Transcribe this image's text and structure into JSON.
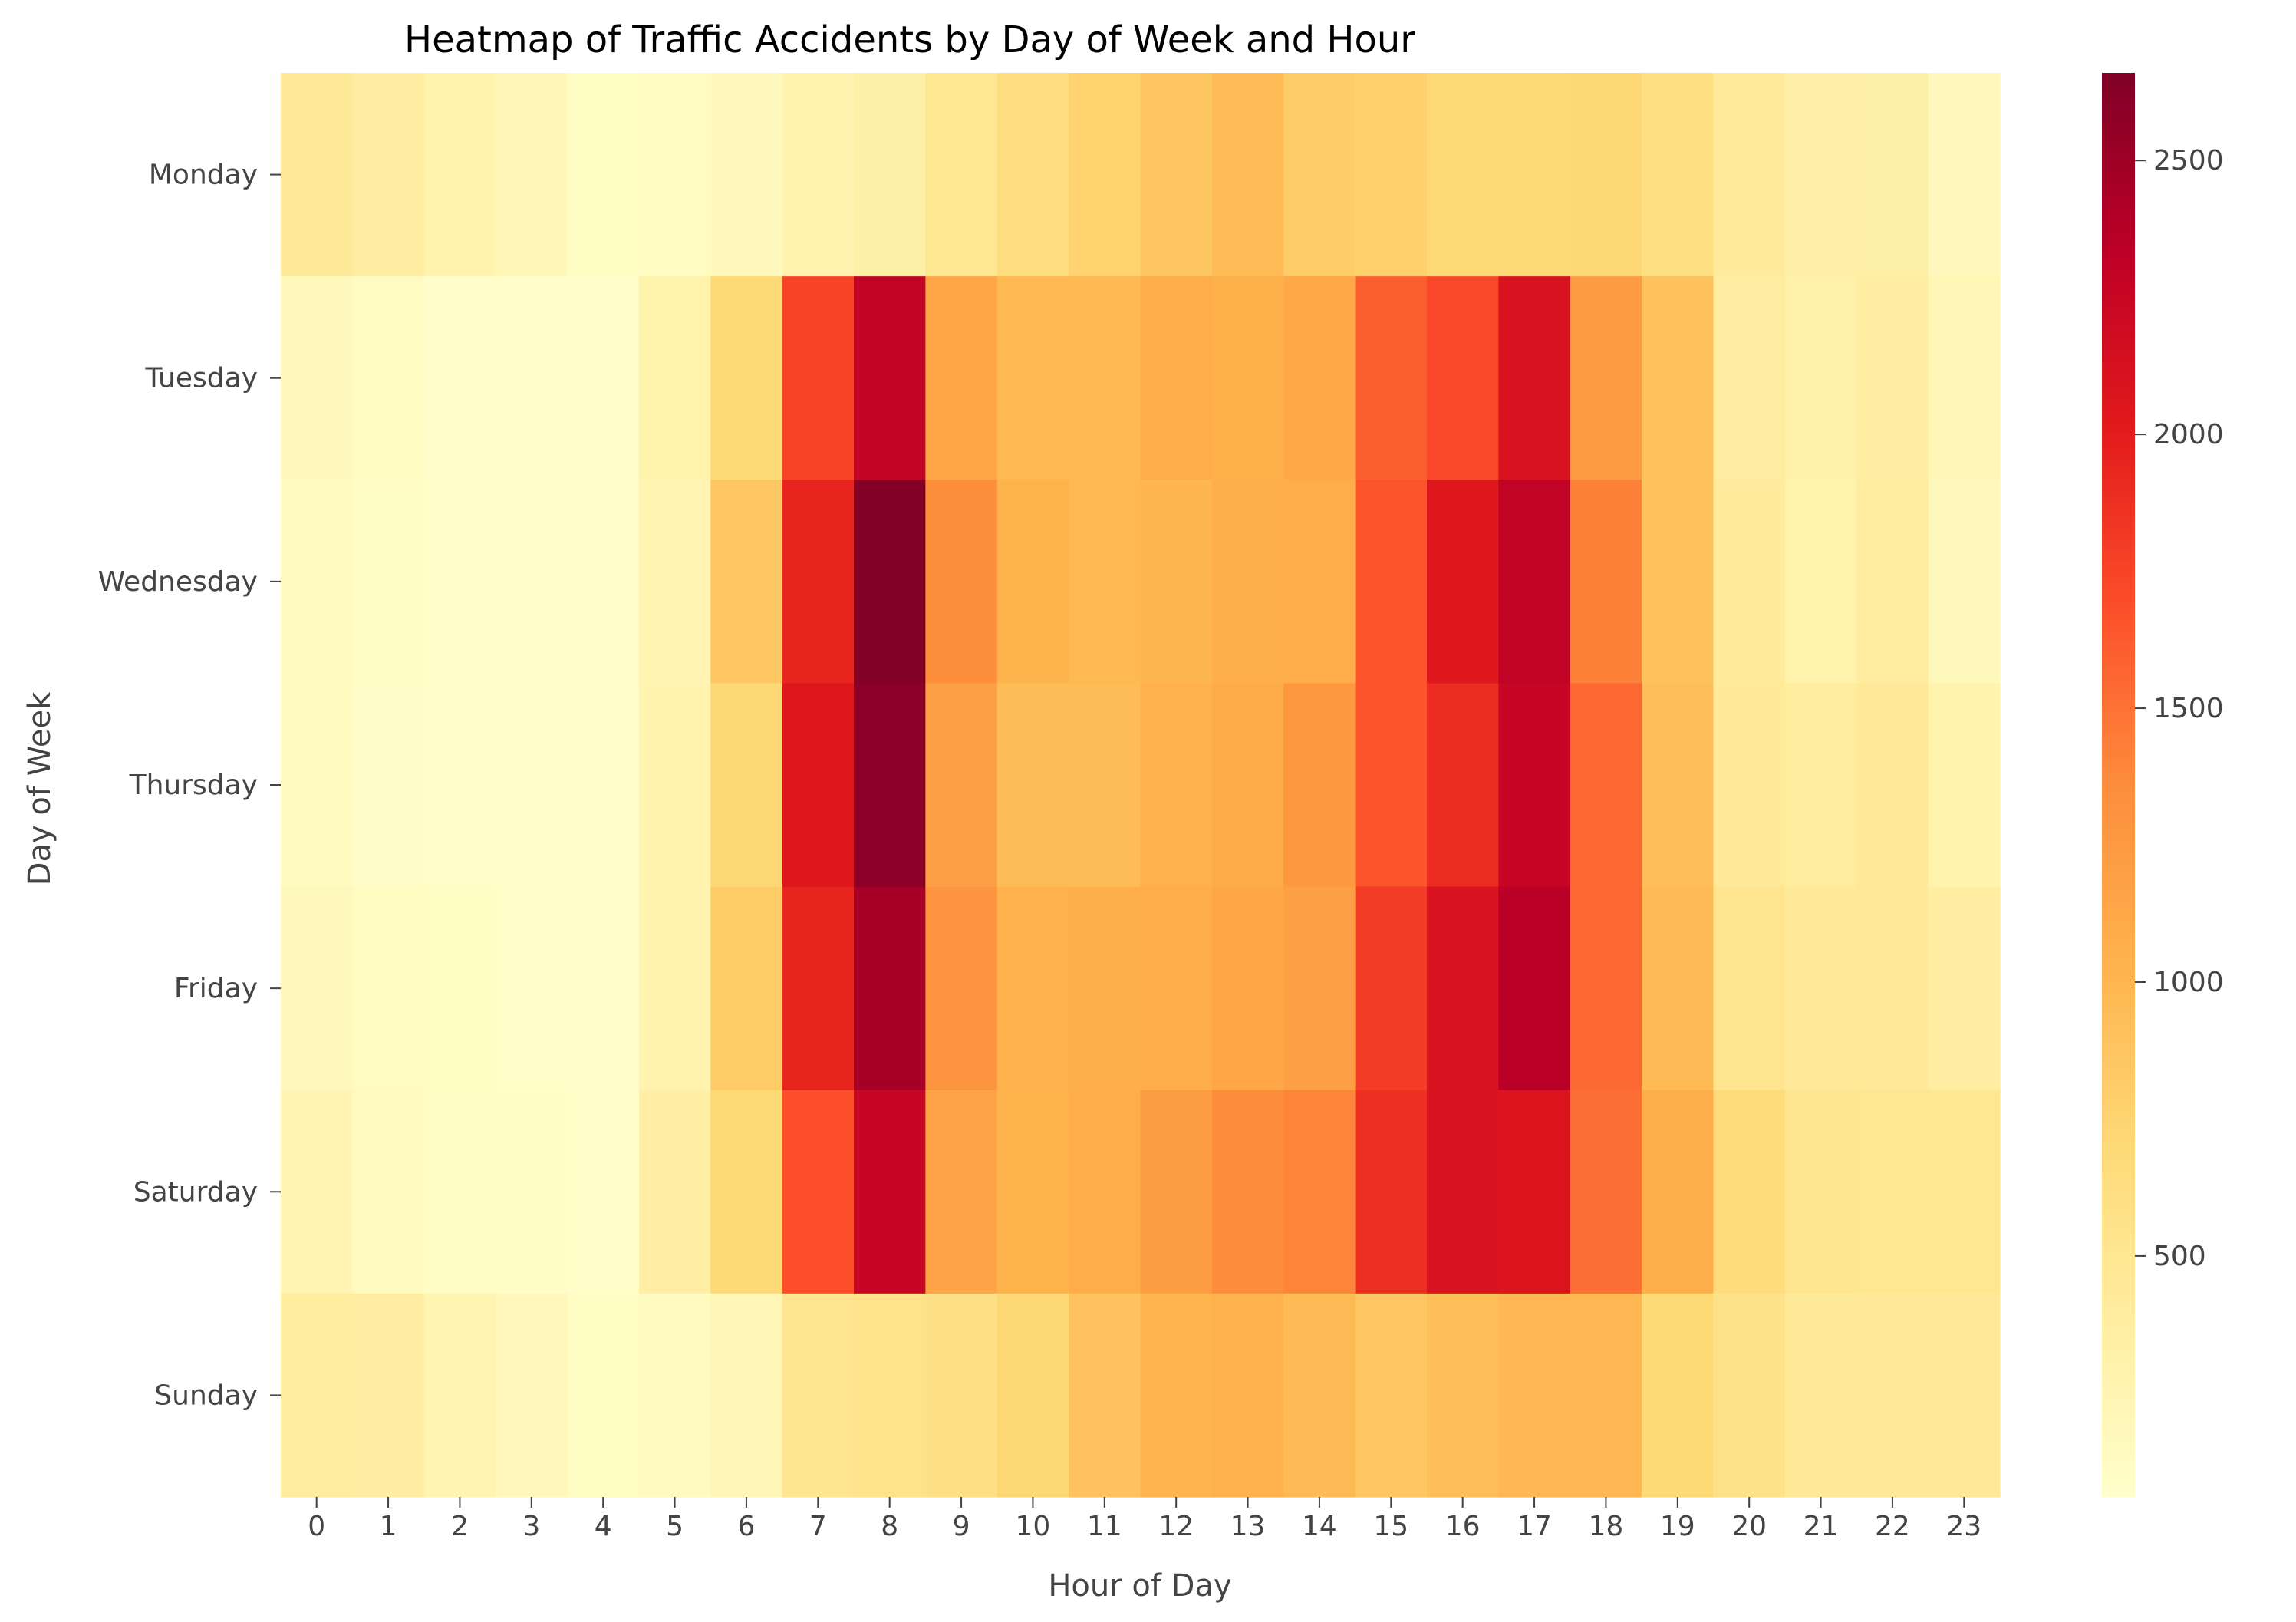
{
  "chart_data": {
    "type": "heatmap",
    "title": "Heatmap of Traffic Accidents by Day of Week and Hour",
    "xlabel": "Hour of Day",
    "ylabel": "Day of Week",
    "x_categories": [
      "0",
      "1",
      "2",
      "3",
      "4",
      "5",
      "6",
      "7",
      "8",
      "9",
      "10",
      "11",
      "12",
      "13",
      "14",
      "15",
      "16",
      "17",
      "18",
      "19",
      "20",
      "21",
      "22",
      "23"
    ],
    "y_categories": [
      "Monday",
      "Tuesday",
      "Wednesday",
      "Thursday",
      "Friday",
      "Saturday",
      "Sunday"
    ],
    "values": [
      [
        430,
        380,
        280,
        230,
        120,
        140,
        170,
        270,
        330,
        500,
        640,
        760,
        870,
        960,
        820,
        780,
        710,
        700,
        720,
        620,
        420,
        340,
        330,
        180
      ],
      [
        160,
        130,
        70,
        70,
        70,
        300,
        700,
        1750,
        2300,
        1150,
        980,
        980,
        1080,
        1050,
        1120,
        1600,
        1720,
        2100,
        1240,
        900,
        380,
        320,
        380,
        220
      ],
      [
        150,
        110,
        90,
        90,
        90,
        260,
        860,
        1950,
        2650,
        1350,
        1030,
        980,
        1000,
        1060,
        1080,
        1650,
        2050,
        2300,
        1420,
        900,
        420,
        300,
        400,
        180
      ],
      [
        150,
        100,
        80,
        80,
        80,
        270,
        720,
        2050,
        2600,
        1200,
        950,
        950,
        1040,
        1100,
        1260,
        1650,
        1900,
        2260,
        1550,
        930,
        430,
        400,
        450,
        280
      ],
      [
        180,
        140,
        120,
        90,
        80,
        270,
        830,
        1950,
        2450,
        1300,
        1040,
        1070,
        1080,
        1150,
        1200,
        1800,
        2100,
        2350,
        1550,
        970,
        520,
        440,
        450,
        380
      ],
      [
        250,
        150,
        110,
        110,
        80,
        360,
        710,
        1680,
        2260,
        1160,
        1030,
        1080,
        1220,
        1360,
        1400,
        1880,
        2100,
        2080,
        1520,
        1060,
        660,
        510,
        500,
        500
      ],
      [
        400,
        370,
        260,
        190,
        120,
        150,
        220,
        510,
        550,
        590,
        720,
        890,
        1010,
        1040,
        970,
        860,
        930,
        990,
        990,
        700,
        560,
        440,
        450,
        450
      ]
    ],
    "colormap": "YlOrRd",
    "colorbar": {
      "min": 60,
      "max": 2660,
      "ticks": [
        "500",
        "1000",
        "1500",
        "2000",
        "2500"
      ]
    },
    "grid": false
  }
}
